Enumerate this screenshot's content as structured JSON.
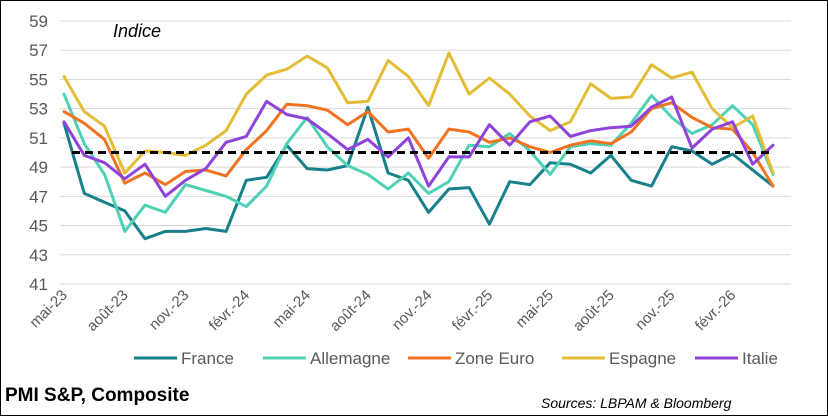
{
  "footer": {
    "title": "PMI S&P, Composite",
    "source": "Sources: LBPAM & Bloomberg"
  },
  "chart_data": {
    "type": "line",
    "subtitle": "Indice",
    "ylim": [
      41,
      59
    ],
    "yticks": [
      41,
      43,
      45,
      47,
      49,
      51,
      53,
      55,
      57,
      59
    ],
    "x_tick_labels": [
      "mai-23",
      "août-23",
      "nov.-23",
      "févr.-24",
      "mai-24",
      "août-24",
      "nov.-24",
      "févr.-25",
      "mai-25",
      "août-25",
      "nov.-25",
      "févr.-26"
    ],
    "x_tick_every": 3,
    "x": [
      "mai-23",
      "juin-23",
      "juil.-23",
      "août-23",
      "sept.-23",
      "oct.-23",
      "nov.-23",
      "déc.-23",
      "janv.-24",
      "févr.-24",
      "mars-24",
      "avr.-24",
      "mai-24",
      "juin-24",
      "juil.-24",
      "août-24",
      "sept.-24",
      "oct.-24",
      "nov.-24",
      "déc.-24",
      "janv.-25",
      "févr.-25",
      "mars-25",
      "avr.-25",
      "mai-25",
      "juin-25",
      "juil.-25",
      "août-25",
      "sept.-25",
      "oct.-25",
      "nov.-25",
      "déc.-25",
      "janv.-26",
      "févr.-26",
      "mars-26",
      "avr.-26"
    ],
    "reference_line": {
      "value": 50,
      "style": "dashed",
      "color": "#000000"
    },
    "grid": "horizontal",
    "legend_position": "bottom",
    "series": [
      {
        "name": "France",
        "color": "#17808a",
        "values": [
          52.0,
          47.2,
          46.6,
          46.0,
          44.1,
          44.6,
          44.6,
          44.8,
          44.6,
          48.1,
          48.3,
          50.5,
          48.9,
          48.8,
          49.1,
          53.1,
          48.6,
          48.1,
          45.9,
          47.5,
          47.6,
          45.1,
          48.0,
          47.8,
          49.3,
          49.2,
          48.6,
          49.8,
          48.1,
          47.7,
          50.4,
          50.1,
          49.2,
          49.9,
          48.8,
          47.7
        ]
      },
      {
        "name": "Allemagne",
        "color": "#4fd1b5",
        "values": [
          54.0,
          50.6,
          48.5,
          44.6,
          46.4,
          45.9,
          47.8,
          47.4,
          47.0,
          46.3,
          47.7,
          50.6,
          52.4,
          50.4,
          49.1,
          48.5,
          47.5,
          48.6,
          47.2,
          48.0,
          50.5,
          50.4,
          51.3,
          50.1,
          48.5,
          50.4,
          50.6,
          50.5,
          52.0,
          53.9,
          52.4,
          51.3,
          51.9,
          53.2,
          51.9,
          48.5
        ]
      },
      {
        "name": "Zone Euro",
        "color": "#f07322",
        "values": [
          52.8,
          52.0,
          50.9,
          47.9,
          48.6,
          47.8,
          48.7,
          48.8,
          48.4,
          50.2,
          51.5,
          53.3,
          53.2,
          52.9,
          51.9,
          52.8,
          51.4,
          51.6,
          49.6,
          51.6,
          51.4,
          50.7,
          51.0,
          50.4,
          50.0,
          50.5,
          50.8,
          50.6,
          51.4,
          53.0,
          53.4,
          52.4,
          51.7,
          51.6,
          50.0,
          47.7
        ]
      },
      {
        "name": "Espagne",
        "color": "#e3bd36",
        "values": [
          55.2,
          52.8,
          51.8,
          48.6,
          50.1,
          50.0,
          49.8,
          50.5,
          51.5,
          54.0,
          55.3,
          55.7,
          56.6,
          55.8,
          53.4,
          53.5,
          56.3,
          55.2,
          53.2,
          56.8,
          54.0,
          55.1,
          54.0,
          52.5,
          51.5,
          52.1,
          54.7,
          53.7,
          53.8,
          56.0,
          55.1,
          55.5,
          53.0,
          51.7,
          52.5,
          48.6
        ]
      },
      {
        "name": "Italie",
        "color": "#8e43d9",
        "values": [
          52.1,
          49.8,
          49.3,
          48.2,
          49.2,
          47.0,
          48.1,
          48.9,
          50.7,
          51.1,
          53.5,
          52.6,
          52.3,
          51.3,
          50.2,
          50.9,
          49.7,
          51.0,
          47.7,
          49.7,
          49.7,
          51.9,
          50.5,
          52.1,
          52.5,
          51.1,
          51.5,
          51.7,
          51.8,
          53.1,
          53.8,
          50.3,
          51.6,
          52.1,
          49.2,
          50.5
        ]
      }
    ]
  }
}
